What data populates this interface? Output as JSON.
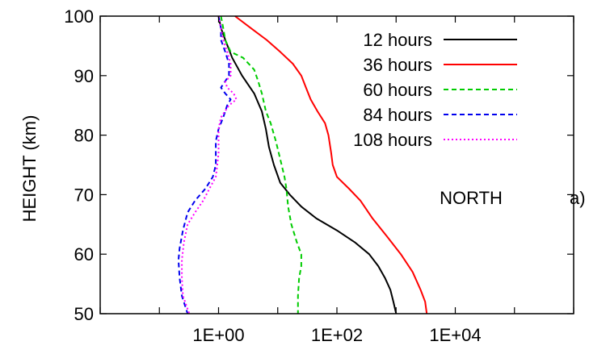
{
  "chart_data": {
    "type": "line",
    "xlabel": "",
    "ylabel": "HEIGHT (km)",
    "xscale": "log",
    "xlim": [
      0.01,
      1000000
    ],
    "ylim": [
      50,
      100
    ],
    "xticks": [
      {
        "value": 1,
        "label": "1E+00"
      },
      {
        "value": 100,
        "label": "1E+02"
      },
      {
        "value": 10000,
        "label": "1E+04"
      }
    ],
    "yticks": [
      50,
      60,
      70,
      80,
      90,
      100
    ],
    "grid": false,
    "legend_position": "top-right",
    "annotations": [
      "NORTH",
      "a)"
    ],
    "series": [
      {
        "name": "12 hours",
        "color": "#000000",
        "dash": "solid",
        "points": [
          [
            1,
            100
          ],
          [
            1.1,
            98
          ],
          [
            1.3,
            96
          ],
          [
            1.7,
            93
          ],
          [
            2.5,
            90
          ],
          [
            4,
            87
          ],
          [
            5.4,
            84
          ],
          [
            6.3,
            81
          ],
          [
            7.1,
            78
          ],
          [
            8.6,
            75
          ],
          [
            11,
            72
          ],
          [
            16,
            70
          ],
          [
            25,
            68
          ],
          [
            45,
            66
          ],
          [
            100,
            64
          ],
          [
            200,
            62
          ],
          [
            350,
            60
          ],
          [
            500,
            58
          ],
          [
            650,
            56
          ],
          [
            800,
            54
          ],
          [
            900,
            52
          ],
          [
            950,
            51
          ],
          [
            1000,
            50
          ]
        ]
      },
      {
        "name": "36 hours",
        "color": "#ff0000",
        "dash": "solid",
        "points": [
          [
            1.9,
            100
          ],
          [
            3.5,
            98
          ],
          [
            6.5,
            96
          ],
          [
            11,
            94
          ],
          [
            18,
            92
          ],
          [
            25,
            90
          ],
          [
            30,
            88
          ],
          [
            36,
            86
          ],
          [
            47,
            84
          ],
          [
            63,
            82
          ],
          [
            72,
            80
          ],
          [
            80,
            77
          ],
          [
            85,
            75
          ],
          [
            100,
            73
          ],
          [
            160,
            71
          ],
          [
            250,
            69
          ],
          [
            400,
            66
          ],
          [
            700,
            63
          ],
          [
            1200,
            60
          ],
          [
            1900,
            57
          ],
          [
            2600,
            54
          ],
          [
            3100,
            52
          ],
          [
            3300,
            50
          ]
        ]
      },
      {
        "name": "60 hours",
        "color": "#00cc00",
        "dash": "dashed",
        "points": [
          [
            1.1,
            100
          ],
          [
            1.2,
            98
          ],
          [
            1.3,
            96
          ],
          [
            1.6,
            94
          ],
          [
            2.6,
            93
          ],
          [
            4,
            91
          ],
          [
            4.7,
            89
          ],
          [
            5.4,
            87
          ],
          [
            6.3,
            84
          ],
          [
            7.6,
            82
          ],
          [
            9.3,
            79
          ],
          [
            11,
            76
          ],
          [
            13,
            73
          ],
          [
            14,
            71
          ],
          [
            15,
            68
          ],
          [
            17,
            65
          ],
          [
            21,
            62
          ],
          [
            25,
            60
          ],
          [
            25,
            58
          ],
          [
            23,
            56
          ],
          [
            22,
            53
          ],
          [
            22,
            50
          ]
        ]
      },
      {
        "name": "84 hours",
        "color": "#0000ee",
        "dash": "dashed",
        "points": [
          [
            1,
            100
          ],
          [
            1.1,
            98
          ],
          [
            1.1,
            96
          ],
          [
            1.3,
            94
          ],
          [
            1.5,
            92
          ],
          [
            1.5,
            90
          ],
          [
            1.1,
            88
          ],
          [
            1.3,
            87
          ],
          [
            1.6,
            86
          ],
          [
            1.4,
            85
          ],
          [
            1.2,
            83
          ],
          [
            1,
            81
          ],
          [
            0.9,
            79
          ],
          [
            0.9,
            75
          ],
          [
            0.8,
            73
          ],
          [
            0.6,
            71
          ],
          [
            0.4,
            69
          ],
          [
            0.3,
            67
          ],
          [
            0.25,
            64
          ],
          [
            0.22,
            61
          ],
          [
            0.21,
            59
          ],
          [
            0.22,
            56
          ],
          [
            0.24,
            53
          ],
          [
            0.3,
            50
          ]
        ]
      },
      {
        "name": "108 hours",
        "color": "#ff00ff",
        "dash": "dotted",
        "points": [
          [
            1,
            100
          ],
          [
            1.1,
            98
          ],
          [
            1.2,
            96
          ],
          [
            1.4,
            94
          ],
          [
            1.6,
            92
          ],
          [
            1.6,
            90
          ],
          [
            1.3,
            89
          ],
          [
            1.4,
            88
          ],
          [
            1.8,
            87
          ],
          [
            2,
            86
          ],
          [
            1.5,
            85
          ],
          [
            1.1,
            83
          ],
          [
            1,
            81
          ],
          [
            1,
            77
          ],
          [
            0.95,
            75
          ],
          [
            0.9,
            73
          ],
          [
            0.7,
            71
          ],
          [
            0.55,
            69
          ],
          [
            0.4,
            67
          ],
          [
            0.3,
            65
          ],
          [
            0.26,
            62
          ],
          [
            0.24,
            59
          ],
          [
            0.24,
            56
          ],
          [
            0.25,
            53
          ],
          [
            0.32,
            50
          ]
        ]
      }
    ]
  }
}
